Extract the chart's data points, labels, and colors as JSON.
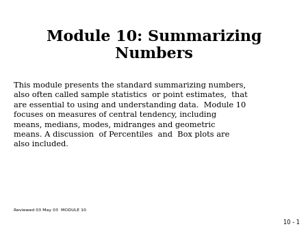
{
  "title_line1": "Module 10: Summarizing",
  "title_line2": "Numbers",
  "body_text": "This module presents the standard summarizing numbers,\nalso often called sample statistics  or point estimates,  that\nare essential to using and understanding data.  Module 10\nfocuses on measures of central tendency, including\nmeans, medians, modes, midranges and geometric\nmeans. A discussion  of Percentiles  and  Box plots are\nalso included.",
  "footer_text": "Reviewed 03 May 03  MODULE 10",
  "page_number": "10 - 1",
  "background_color": "#ffffff",
  "title_color": "#000000",
  "body_color": "#000000",
  "footer_color": "#000000",
  "title_fontsize": 16,
  "body_fontsize": 8.2,
  "footer_fontsize": 4.5,
  "page_num_fontsize": 6
}
